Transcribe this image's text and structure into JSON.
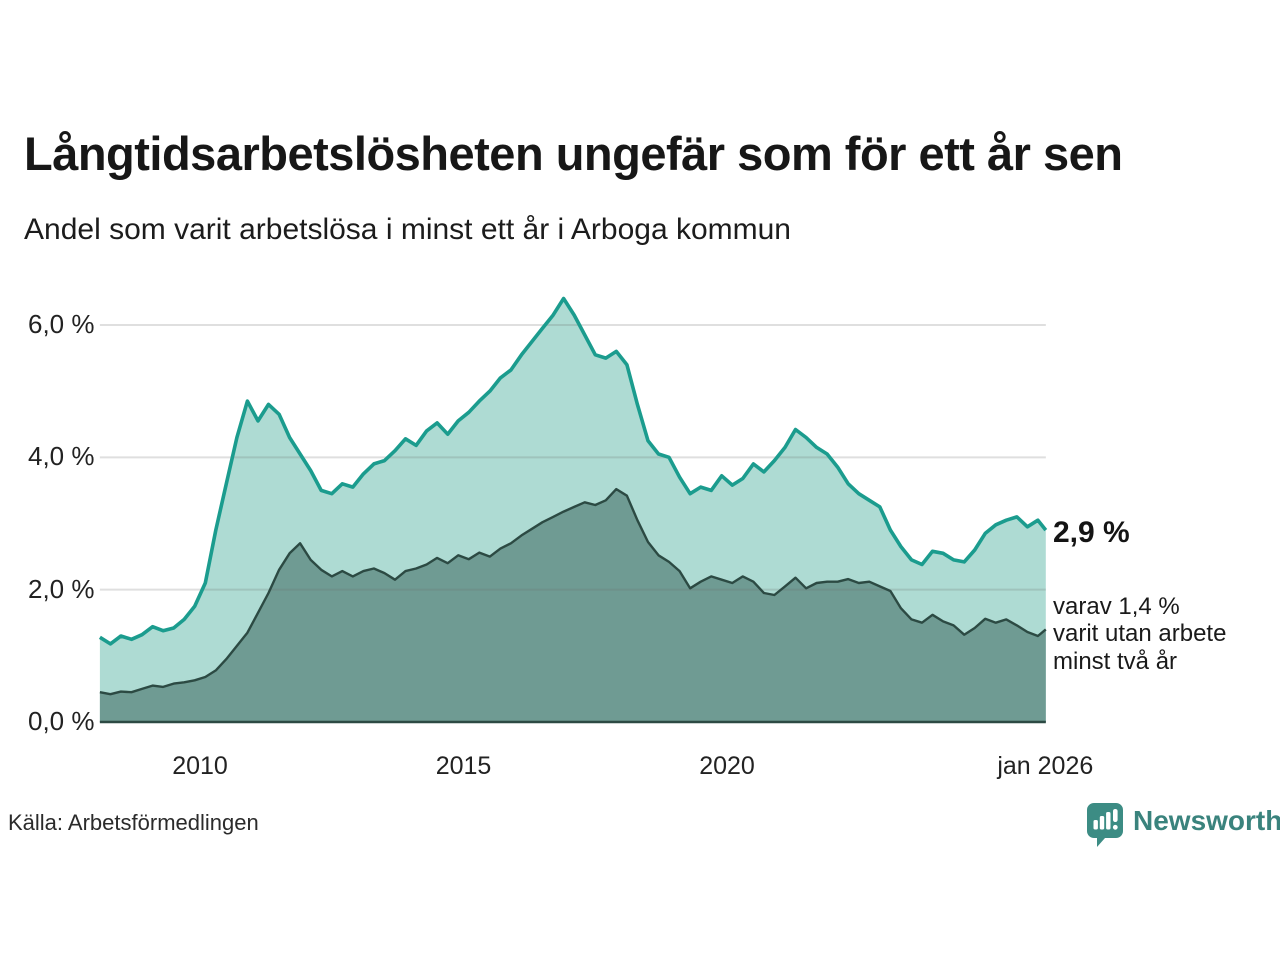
{
  "header": {
    "title": "Långtidsarbetslösheten ungefär som för ett år sen",
    "subtitle": "Andel som varit arbetslösa i minst ett år i Arboga kommun"
  },
  "annotations": {
    "end_value": "2,9 %",
    "end_note": "varav 1,4 %\nvarit utan arbete\nminst två år"
  },
  "source": {
    "label": "Källa: Arbetsförmedlingen"
  },
  "branding": {
    "name": "Newsworthy"
  },
  "colors": {
    "area_total_fill": "#aedbd3",
    "line_total": "#1b9c8e",
    "area_two_year_fill": "#6f9b93",
    "line_two_year": "#2c4a43",
    "baseline": "#2c4a43",
    "grid": "rgba(110,110,110,0.22)",
    "text": "#1a1a1a",
    "brand_teal": "#3c8c84"
  },
  "chart_data": {
    "type": "area",
    "title": "Långtidsarbetslösheten ungefär som för ett år sen",
    "subtitle": "Andel som varit arbetslösa i minst ett år i Arboga kommun",
    "unit": "%",
    "grid": true,
    "legend_position": "none",
    "ylim": [
      0,
      6.6
    ],
    "x_start": 2008.1,
    "x_step": 0.2,
    "x_end": 2026.05,
    "yticks": [
      {
        "value": 6,
        "label": "6,0 %"
      },
      {
        "value": 4,
        "label": "4,0 %"
      },
      {
        "value": 2,
        "label": "2,0 %"
      },
      {
        "value": 0,
        "label": "0,0 %"
      }
    ],
    "xticks": [
      {
        "year": 2010,
        "label": "2010"
      },
      {
        "year": 2015,
        "label": "2015"
      },
      {
        "year": 2020,
        "label": "2020"
      },
      {
        "year": 2026.04,
        "label": "jan 2026"
      }
    ],
    "series": [
      {
        "name": "Andel som varit arbetslösa minst ett år",
        "end_value": 2.9,
        "values": [
          1.28,
          1.18,
          1.3,
          1.25,
          1.32,
          1.44,
          1.38,
          1.42,
          1.55,
          1.75,
          2.1,
          2.9,
          3.6,
          4.3,
          4.85,
          4.55,
          4.8,
          4.65,
          4.3,
          4.05,
          3.8,
          3.5,
          3.45,
          3.6,
          3.55,
          3.75,
          3.9,
          3.95,
          4.1,
          4.28,
          4.18,
          4.4,
          4.52,
          4.35,
          4.55,
          4.68,
          4.85,
          5.0,
          5.2,
          5.32,
          5.55,
          5.75,
          5.95,
          6.15,
          6.4,
          6.15,
          5.85,
          5.55,
          5.5,
          5.6,
          5.4,
          4.8,
          4.25,
          4.05,
          4.0,
          3.7,
          3.45,
          3.55,
          3.5,
          3.72,
          3.58,
          3.68,
          3.9,
          3.78,
          3.95,
          4.15,
          4.42,
          4.3,
          4.15,
          4.05,
          3.85,
          3.6,
          3.45,
          3.35,
          3.25,
          2.9,
          2.65,
          2.45,
          2.38,
          2.58,
          2.55,
          2.45,
          2.42,
          2.6,
          2.85,
          2.98,
          3.05,
          3.1,
          2.95,
          3.05,
          2.9
        ]
      },
      {
        "name": "varav utan arbete minst två år",
        "end_value": 1.4,
        "values": [
          0.45,
          0.42,
          0.46,
          0.45,
          0.5,
          0.55,
          0.53,
          0.58,
          0.6,
          0.63,
          0.68,
          0.78,
          0.95,
          1.15,
          1.35,
          1.65,
          1.95,
          2.3,
          2.55,
          2.7,
          2.45,
          2.3,
          2.2,
          2.28,
          2.2,
          2.28,
          2.32,
          2.25,
          2.15,
          2.28,
          2.32,
          2.38,
          2.48,
          2.4,
          2.52,
          2.46,
          2.56,
          2.5,
          2.62,
          2.7,
          2.82,
          2.92,
          3.02,
          3.1,
          3.18,
          3.25,
          3.32,
          3.28,
          3.35,
          3.52,
          3.42,
          3.05,
          2.72,
          2.52,
          2.42,
          2.28,
          2.02,
          2.12,
          2.2,
          2.15,
          2.1,
          2.2,
          2.12,
          1.95,
          1.92,
          2.05,
          2.18,
          2.02,
          2.1,
          2.12,
          2.12,
          2.16,
          2.1,
          2.12,
          2.05,
          1.98,
          1.72,
          1.55,
          1.5,
          1.62,
          1.52,
          1.46,
          1.32,
          1.42,
          1.56,
          1.5,
          1.55,
          1.46,
          1.36,
          1.3,
          1.4
        ]
      }
    ]
  }
}
